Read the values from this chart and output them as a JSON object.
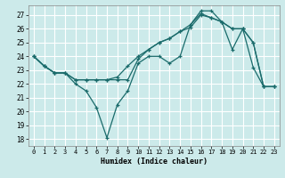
{
  "title": "",
  "xlabel": "Humidex (Indice chaleur)",
  "bg_color": "#cceaea",
  "grid_color": "#ffffff",
  "line_color": "#1a6b6b",
  "xlim": [
    -0.5,
    23.5
  ],
  "ylim": [
    17.5,
    27.7
  ],
  "yticks": [
    18,
    19,
    20,
    21,
    22,
    23,
    24,
    25,
    26,
    27
  ],
  "xticks": [
    0,
    1,
    2,
    3,
    4,
    5,
    6,
    7,
    8,
    9,
    10,
    11,
    12,
    13,
    14,
    15,
    16,
    17,
    18,
    19,
    20,
    21,
    22,
    23
  ],
  "line1_x": [
    0,
    1,
    2,
    3,
    4,
    5,
    6,
    7,
    8,
    9,
    10,
    11,
    12,
    13,
    14,
    15,
    16,
    17,
    18,
    19,
    20,
    21,
    22,
    23
  ],
  "line1_y": [
    24.0,
    23.3,
    22.8,
    22.8,
    22.0,
    21.5,
    20.3,
    18.1,
    20.5,
    21.5,
    23.5,
    24.0,
    24.0,
    23.5,
    24.0,
    26.3,
    27.3,
    27.3,
    26.5,
    24.5,
    26.0,
    23.2,
    21.8,
    21.8
  ],
  "line2_x": [
    0,
    1,
    2,
    3,
    4,
    5,
    6,
    7,
    8,
    9,
    10,
    11,
    12,
    13,
    14,
    15,
    16,
    17,
    18,
    19,
    20,
    21,
    22,
    23
  ],
  "line2_y": [
    24.0,
    23.3,
    22.8,
    22.8,
    22.3,
    22.3,
    22.3,
    22.3,
    22.3,
    22.3,
    23.8,
    24.5,
    25.0,
    25.3,
    25.8,
    26.3,
    27.1,
    26.8,
    26.5,
    26.0,
    26.0,
    25.0,
    21.8,
    21.8
  ],
  "line3_x": [
    0,
    1,
    2,
    3,
    4,
    5,
    6,
    7,
    8,
    9,
    10,
    11,
    12,
    13,
    14,
    15,
    16,
    17,
    18,
    19,
    20,
    21,
    22,
    23
  ],
  "line3_y": [
    24.0,
    23.3,
    22.8,
    22.8,
    22.3,
    22.3,
    22.3,
    22.3,
    22.5,
    23.3,
    24.0,
    24.5,
    25.0,
    25.3,
    25.8,
    26.1,
    27.0,
    26.8,
    26.5,
    26.0,
    26.0,
    25.0,
    21.8,
    21.8
  ]
}
